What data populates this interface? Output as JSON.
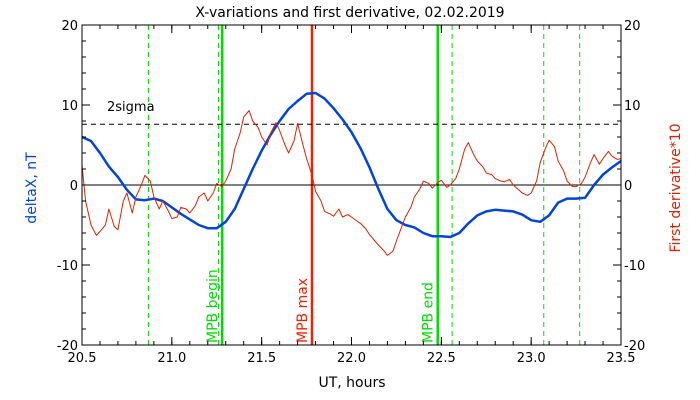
{
  "chart_data": {
    "type": "line",
    "title": "X-variations and first derivative, 02.02.2019",
    "xlabel": "UT, hours",
    "ylabel_left": "deltaX, nT",
    "ylabel_right": "First derivative*10",
    "xlim": [
      20.5,
      23.5
    ],
    "ylim": [
      -20,
      20
    ],
    "x_ticks": [
      20.5,
      21.0,
      21.5,
      22.0,
      22.5,
      23.0,
      23.5
    ],
    "x_tick_labels": [
      "20.5",
      "21.0",
      "21.5",
      "22.0",
      "22.5",
      "23.0",
      "23.5"
    ],
    "y_ticks": [
      -20,
      -10,
      0,
      10,
      20
    ],
    "y_tick_labels": [
      "-20",
      "-10",
      "0",
      "10",
      "20"
    ],
    "threshold": {
      "label": "2sigma",
      "value": 7.6
    },
    "zero_line": 0,
    "vertical_markers": [
      {
        "label": "MPB begin",
        "x": 21.28,
        "color": "#00dd00"
      },
      {
        "label": "MPB max",
        "x": 21.78,
        "color": "#ee2200"
      },
      {
        "label": "MPB end",
        "x": 22.48,
        "color": "#00dd00"
      }
    ],
    "dashed_verticals": [
      20.87,
      21.26,
      22.56,
      23.07,
      23.27
    ],
    "series": [
      {
        "color": "#0044dd",
        "axis": "left",
        "x": [
          20.5,
          20.55,
          20.6,
          20.65,
          20.7,
          20.75,
          20.8,
          20.85,
          20.9,
          20.95,
          21.0,
          21.05,
          21.1,
          21.15,
          21.2,
          21.25,
          21.3,
          21.35,
          21.4,
          21.45,
          21.5,
          21.55,
          21.6,
          21.65,
          21.7,
          21.75,
          21.8,
          21.85,
          21.9,
          21.95,
          22.0,
          22.05,
          22.1,
          22.15,
          22.2,
          22.25,
          22.3,
          22.35,
          22.4,
          22.45,
          22.5,
          22.55,
          22.6,
          22.65,
          22.7,
          22.75,
          22.8,
          22.85,
          22.9,
          22.95,
          23.0,
          23.05,
          23.1,
          23.15,
          23.2,
          23.25,
          23.3,
          23.35,
          23.4,
          23.45,
          23.5
        ],
        "y": [
          6.0,
          5.5,
          4.0,
          2.3,
          1.0,
          -0.6,
          -1.8,
          -1.9,
          -1.7,
          -2.0,
          -2.8,
          -3.6,
          -4.3,
          -5.0,
          -5.4,
          -5.4,
          -4.6,
          -3.0,
          -0.5,
          2.0,
          4.3,
          6.3,
          8.0,
          9.5,
          10.5,
          11.4,
          11.5,
          10.8,
          9.6,
          8.2,
          6.6,
          4.6,
          2.2,
          -0.5,
          -3.0,
          -4.4,
          -5.0,
          -5.3,
          -6.0,
          -6.4,
          -6.4,
          -6.5,
          -6.0,
          -4.8,
          -3.8,
          -3.3,
          -3.1,
          -3.2,
          -3.3,
          -3.7,
          -4.4,
          -4.6,
          -3.8,
          -2.2,
          -1.7,
          -1.7,
          -1.6,
          0.0,
          1.3,
          2.2,
          3.0
        ]
      },
      {
        "color": "#dd2200",
        "axis": "right",
        "x": [
          20.5,
          20.52,
          20.55,
          20.58,
          20.6,
          20.63,
          20.65,
          20.68,
          20.7,
          20.73,
          20.75,
          20.78,
          20.8,
          20.83,
          20.85,
          20.88,
          20.9,
          20.93,
          20.95,
          20.98,
          21.0,
          21.03,
          21.05,
          21.08,
          21.1,
          21.13,
          21.15,
          21.18,
          21.2,
          21.23,
          21.25,
          21.28,
          21.3,
          21.33,
          21.35,
          21.38,
          21.4,
          21.43,
          21.45,
          21.48,
          21.5,
          21.53,
          21.55,
          21.58,
          21.6,
          21.63,
          21.65,
          21.68,
          21.7,
          21.73,
          21.75,
          21.78,
          21.8,
          21.83,
          21.85,
          21.88,
          21.9,
          21.93,
          21.95,
          21.98,
          22.0,
          22.03,
          22.05,
          22.08,
          22.1,
          22.13,
          22.15,
          22.18,
          22.2,
          22.23,
          22.25,
          22.28,
          22.3,
          22.33,
          22.35,
          22.38,
          22.4,
          22.43,
          22.45,
          22.48,
          22.5,
          22.53,
          22.55,
          22.58,
          22.6,
          22.63,
          22.65,
          22.68,
          22.7,
          22.73,
          22.75,
          22.78,
          22.8,
          22.83,
          22.85,
          22.88,
          22.9,
          22.93,
          22.95,
          22.98,
          23.0,
          23.03,
          23.05,
          23.08,
          23.1,
          23.13,
          23.15,
          23.18,
          23.2,
          23.23,
          23.25,
          23.28,
          23.3,
          23.33,
          23.35,
          23.38,
          23.4,
          23.43,
          23.45,
          23.48,
          23.5
        ],
        "y": [
          2.5,
          -2.0,
          -5.0,
          -6.3,
          -5.8,
          -5.0,
          -3.0,
          -5.2,
          -5.6,
          -2.0,
          -1.0,
          -3.5,
          -1.5,
          0.0,
          1.2,
          0.5,
          -1.5,
          -3.0,
          -2.0,
          -3.2,
          -4.2,
          -4.0,
          -2.8,
          -3.0,
          -3.5,
          -2.6,
          -1.5,
          -1.0,
          -2.0,
          -1.0,
          0.2,
          -0.2,
          0.5,
          2.0,
          4.5,
          6.5,
          8.5,
          9.3,
          8.0,
          7.2,
          6.0,
          5.0,
          6.5,
          7.8,
          6.8,
          5.0,
          4.0,
          5.5,
          7.7,
          5.0,
          3.3,
          1.2,
          -0.8,
          -2.0,
          -3.3,
          -3.6,
          -3.9,
          -3.0,
          -4.0,
          -3.7,
          -4.0,
          -4.5,
          -4.8,
          -5.5,
          -6.2,
          -7.0,
          -7.5,
          -8.2,
          -8.8,
          -8.3,
          -7.0,
          -5.2,
          -4.0,
          -2.8,
          -1.5,
          -0.5,
          0.5,
          0.2,
          -0.4,
          0.3,
          0.6,
          -0.3,
          0.0,
          0.8,
          2.0,
          4.5,
          5.3,
          3.8,
          3.0,
          2.3,
          1.5,
          1.3,
          0.8,
          0.5,
          0.4,
          0.7,
          0.0,
          -0.6,
          -1.0,
          -1.3,
          -1.0,
          0.5,
          2.8,
          4.6,
          5.6,
          4.8,
          3.0,
          1.8,
          0.5,
          -0.2,
          -0.2,
          0.2,
          1.0,
          2.8,
          3.8,
          2.6,
          3.3,
          4.2,
          3.6,
          3.2,
          3.3
        ]
      }
    ],
    "annotations": [
      {
        "text": "2sigma"
      }
    ]
  }
}
